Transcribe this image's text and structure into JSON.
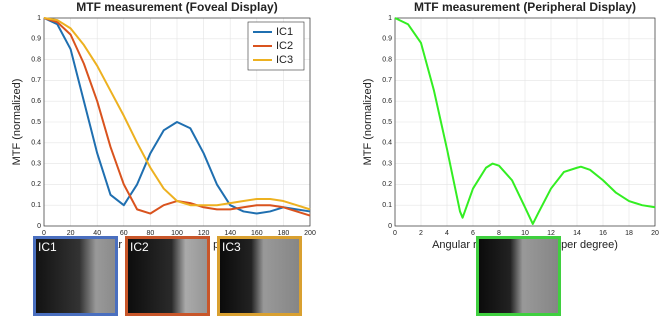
{
  "chart_data": [
    {
      "type": "line",
      "title": "MTF measurement (Foveal Display)",
      "xlabel": "Angular resolution (cycles per degree)",
      "ylabel": "MTF (normalized)",
      "x": [
        0,
        10,
        20,
        30,
        40,
        50,
        60,
        70,
        80,
        90,
        100,
        110,
        120,
        130,
        140,
        150,
        160,
        170,
        180,
        190,
        200
      ],
      "series": [
        {
          "name": "IC1",
          "color": "#1f6fb0",
          "values": [
            1,
            0.97,
            0.85,
            0.6,
            0.35,
            0.15,
            0.1,
            0.2,
            0.35,
            0.46,
            0.5,
            0.47,
            0.35,
            0.2,
            0.1,
            0.07,
            0.06,
            0.07,
            0.09,
            0.08,
            0.07
          ]
        },
        {
          "name": "IC2",
          "color": "#d9531e",
          "values": [
            1,
            0.98,
            0.92,
            0.78,
            0.6,
            0.38,
            0.2,
            0.08,
            0.06,
            0.1,
            0.12,
            0.11,
            0.09,
            0.08,
            0.08,
            0.09,
            0.1,
            0.1,
            0.09,
            0.07,
            0.05
          ]
        },
        {
          "name": "IC3",
          "color": "#edb120",
          "values": [
            1,
            0.99,
            0.95,
            0.87,
            0.77,
            0.65,
            0.53,
            0.4,
            0.28,
            0.18,
            0.12,
            0.1,
            0.1,
            0.1,
            0.11,
            0.12,
            0.13,
            0.13,
            0.12,
            0.1,
            0.08
          ]
        }
      ],
      "xlim": [
        0,
        200
      ],
      "xticks": [
        0,
        20,
        40,
        60,
        80,
        100,
        120,
        140,
        160,
        180,
        200
      ],
      "ylim": [
        0,
        1
      ],
      "yticks": [
        0,
        0.1,
        0.2,
        0.3,
        0.4,
        0.5,
        0.6,
        0.7,
        0.8,
        0.9,
        1
      ],
      "grid": true,
      "legend": "upper right"
    },
    {
      "type": "line",
      "title": "MTF measurement (Peripheral Display)",
      "xlabel": "Angular resolution (cycles per degree)",
      "ylabel": "MTF (normalized)",
      "x": [
        0,
        1,
        2,
        3,
        4,
        5,
        5.2,
        6,
        7,
        7.5,
        8,
        9,
        10,
        10.6,
        11,
        12,
        13,
        14,
        14.3,
        15,
        16,
        17,
        18,
        19,
        20
      ],
      "values": [
        1,
        0.97,
        0.88,
        0.65,
        0.37,
        0.07,
        0.04,
        0.18,
        0.28,
        0.3,
        0.29,
        0.22,
        0.09,
        0.01,
        0.06,
        0.18,
        0.26,
        0.28,
        0.285,
        0.27,
        0.22,
        0.16,
        0.12,
        0.1,
        0.09
      ],
      "color": "#33ee22",
      "xlim": [
        0,
        20
      ],
      "xticks": [
        0,
        2,
        4,
        6,
        8,
        10,
        12,
        14,
        16,
        18,
        20
      ],
      "ylim": [
        0,
        1
      ],
      "yticks": [
        0,
        0.1,
        0.2,
        0.3,
        0.4,
        0.5,
        0.6,
        0.7,
        0.8,
        0.9,
        1
      ],
      "grid": true
    }
  ],
  "thumbnails": [
    {
      "label": "IC1",
      "color": "#4a6fbf"
    },
    {
      "label": "IC2",
      "color": "#c8562a"
    },
    {
      "label": "IC3",
      "color": "#d9a030"
    },
    {
      "color": "#3fcf3f"
    }
  ]
}
